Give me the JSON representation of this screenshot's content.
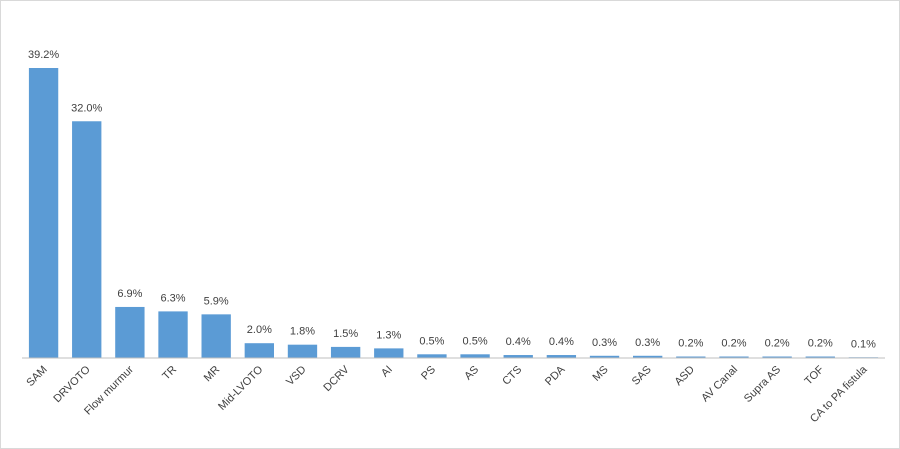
{
  "chart_data": {
    "type": "bar",
    "categories": [
      "SAM",
      "DRVOTO",
      "Flow murmur",
      "TR",
      "MR",
      "Mid-LVOTO",
      "VSD",
      "DCRV",
      "AI",
      "PS",
      "AS",
      "CTS",
      "PDA",
      "MS",
      "SAS",
      "ASD",
      "AV Canal",
      "Supra AS",
      "TOF",
      "CA to PA fistula"
    ],
    "values": [
      39.2,
      32.0,
      6.9,
      6.3,
      5.9,
      2.0,
      1.8,
      1.5,
      1.3,
      0.5,
      0.5,
      0.4,
      0.4,
      0.3,
      0.3,
      0.2,
      0.2,
      0.2,
      0.2,
      0.1
    ],
    "value_labels": [
      "39.2%",
      "32.0%",
      "6.9%",
      "6.3%",
      "5.9%",
      "2.0%",
      "1.8%",
      "1.5%",
      "1.3%",
      "0.5%",
      "0.5%",
      "0.4%",
      "0.4%",
      "0.3%",
      "0.3%",
      "0.2%",
      "0.2%",
      "0.2%",
      "0.2%",
      "0.1%"
    ],
    "color": "#5b9bd5"
  }
}
